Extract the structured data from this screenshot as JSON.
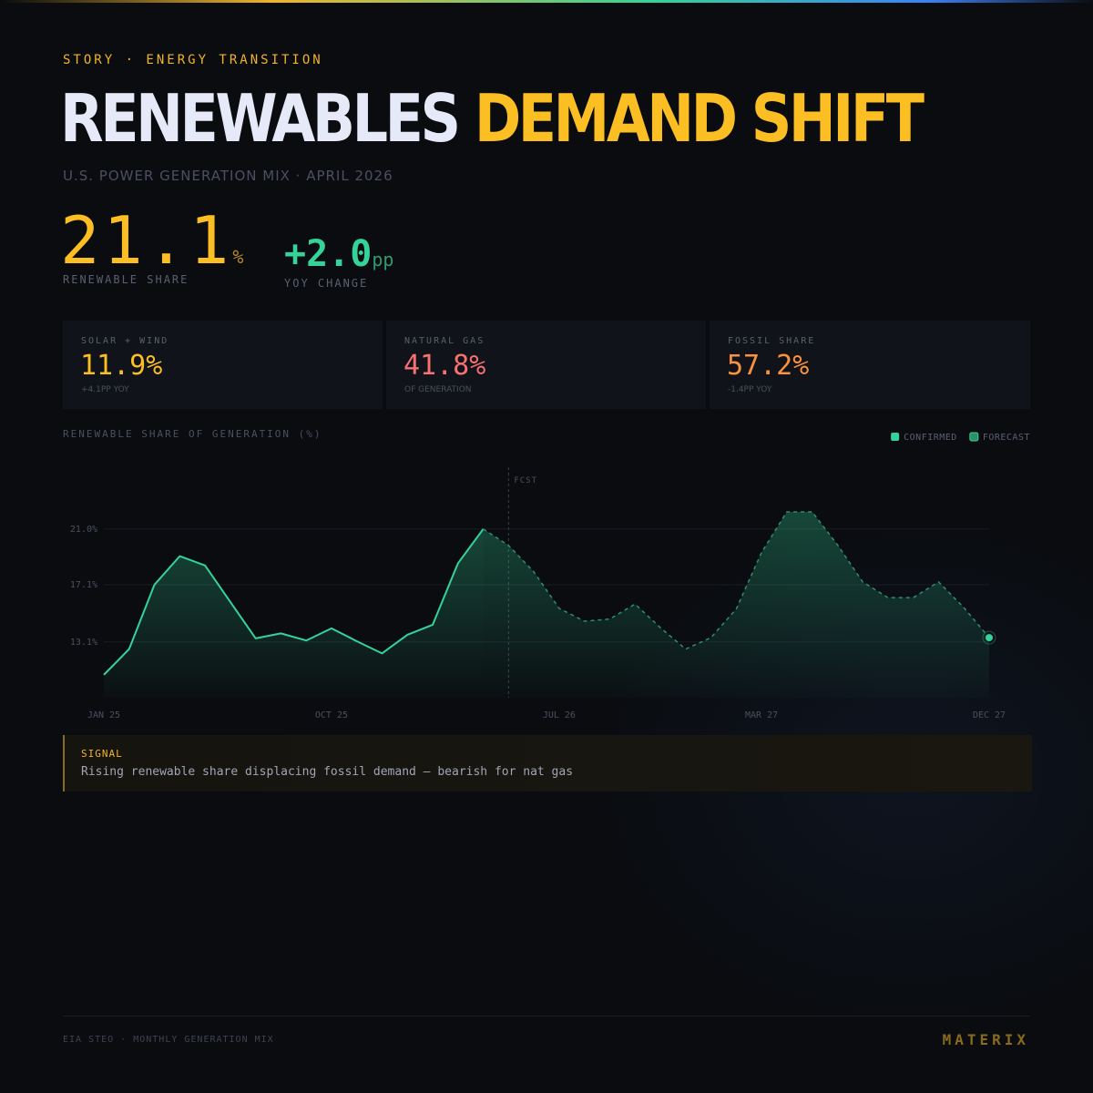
{
  "header": {
    "kicker": "STORY · ENERGY TRANSITION",
    "title_part1": "RENEWABLES",
    "title_part2": "DEMAND SHIFT",
    "subtitle": "U.S. POWER GENERATION MIX · APRIL 2026"
  },
  "kpis": [
    {
      "value": "21.1",
      "unit": "%",
      "label": "RENEWABLE SHARE"
    },
    {
      "value": "+2.0",
      "unit": "pp",
      "label": "YOY CHANGE"
    }
  ],
  "cards": [
    {
      "label": "SOLAR + WIND",
      "value": "11.9%",
      "note": "+4.1PP YOY"
    },
    {
      "label": "NATURAL GAS",
      "value": "41.8%",
      "note": "OF GENERATION"
    },
    {
      "label": "FOSSIL SHARE",
      "value": "57.2%",
      "note": "-1.4PP YOY"
    }
  ],
  "chart_data": {
    "type": "line",
    "title": "RENEWABLE SHARE OF GENERATION (%)",
    "annotation": "FCST",
    "categories": [
      "JAN 25",
      null,
      null,
      null,
      null,
      null,
      null,
      null,
      null,
      "OCT 25",
      null,
      null,
      null,
      null,
      null,
      null,
      null,
      null,
      "JUL 26",
      null,
      null,
      null,
      null,
      null,
      null,
      null,
      "MAR 27",
      null,
      null,
      null,
      null,
      null,
      null,
      null,
      null,
      "DEC 27"
    ],
    "series": [
      {
        "name": "CONFIRMED",
        "color": "#34d399",
        "dashed": false,
        "values": [
          10.8,
          12.6,
          17.1,
          19.1,
          18.45,
          15.9,
          13.35,
          13.7,
          13.2,
          14.05,
          13.15,
          12.3,
          13.6,
          14.3,
          18.6,
          21.0,
          null,
          null,
          null,
          null,
          null,
          null,
          null,
          null,
          null,
          null,
          null,
          null,
          null,
          null,
          null,
          null,
          null,
          null,
          null,
          null
        ]
      },
      {
        "name": "FORECAST",
        "color": "#2f8f6a",
        "dashed": true,
        "values": [
          null,
          null,
          null,
          null,
          null,
          null,
          null,
          null,
          null,
          null,
          null,
          null,
          null,
          null,
          null,
          21.0,
          19.85,
          18.0,
          15.45,
          14.55,
          14.7,
          15.75,
          14.1,
          12.6,
          13.4,
          15.4,
          19.35,
          22.2,
          22.2,
          19.9,
          17.3,
          16.2,
          16.2,
          17.3,
          15.5,
          13.4
        ]
      }
    ],
    "ylim": [
      9.2,
      25.0
    ],
    "yticks": [
      {
        "value": 13.1,
        "label": "13.1%"
      },
      {
        "value": 17.1,
        "label": "17.1%"
      },
      {
        "value": 21.0,
        "label": "21.0%"
      }
    ],
    "grid": true
  },
  "signal": {
    "label": "SIGNAL",
    "text": "Rising renewable share displacing fossil demand — bearish for nat gas"
  },
  "footer": {
    "source": "EIA STEO · MONTHLY GENERATION MIX",
    "brand": "MATERIX"
  }
}
